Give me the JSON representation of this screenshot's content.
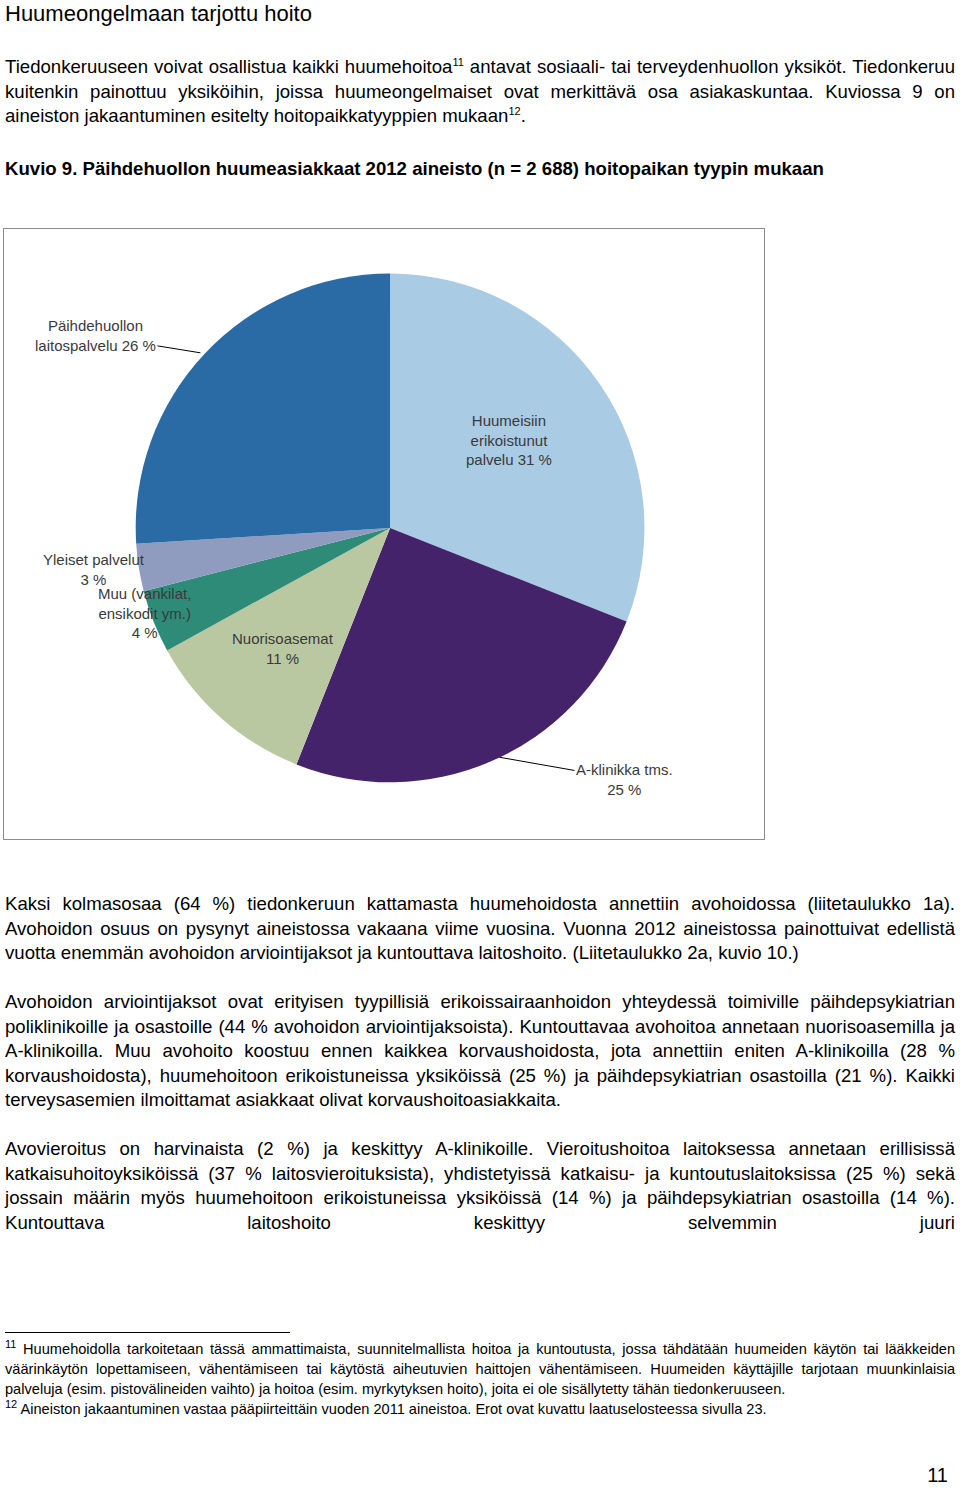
{
  "heading": "Huumeongelmaan tarjottu hoito",
  "intro": [
    "Tiedonkeruuseen voivat osallistua kaikki huumehoitoa",
    {
      "sup": "11"
    },
    " antavat sosiaali- tai terveydenhuollon yksiköt. Tiedonkeruu kuitenkin painottuu yksiköihin, joissa huumeongelmaiset ovat merkittävä osa asiakaskuntaa. Kuviossa 9 on aineiston jakaantuminen esitelty hoitopaikkatyyppien mukaan",
    {
      "sup": "12"
    },
    "."
  ],
  "figure_caption": {
    "label": "Kuvio 9.",
    "text": "Päihdehuollon huumeasiakkaat 2012 aineisto (n = 2 688) hoitopaikan tyypin mukaan"
  },
  "chart_data": {
    "type": "pie",
    "categories": [
      "Huumeisiin erikoistunut palvelu",
      "A-klinikka tms.",
      "Nuorisoasemat",
      "Muu (vankilat, ensikodit ym.)",
      "Yleiset palvelut",
      "Päihdehuollon laitospalvelu"
    ],
    "values": [
      31,
      25,
      11,
      4,
      3,
      26
    ],
    "value_labels": [
      "Huumeisiin\nerikoistunut\npalvelu 31 %",
      "A-klinikka tms.\n25 %",
      "Nuorisoasemat\n11 %",
      "Muu (vankilat,\nensikodit ym.)\n4 %",
      "Yleiset palvelut\n3 %",
      "Päihdehuollon\nlaitospalvelu 26 %"
    ],
    "colors": [
      "#a9cbe4",
      "#45236a",
      "#bac8a2",
      "#2e8b78",
      "#8f9cbf",
      "#2a6aa5"
    ],
    "data_labels": true
  },
  "paragraphs": [
    [
      "Kaksi kolmasosaa (64 %) tiedonkeruun kattamasta huumehoidosta annettiin avohoidossa (liitetaulukko 1a). Avohoidon osuus on pysynyt aineistossa vakaana viime vuosina. Vuonna 2012 aineistossa painottuivat edellistä vuotta enemmän avohoidon arviointijaksot ja kuntouttava laitoshoito. (Liitetaulukko 2a, kuvio 10.)"
    ],
    [
      "Avohoidon arviointijaksot ovat erityisen tyypillisiä erikoissairaanhoidon yhteydessä toimiville päihdepsykiatrian poliklinikoille ja osastoille (44 % avohoidon arviointijaksoista). Kuntouttavaa avohoitoa annetaan nuorisoasemilla ja A-klinikoilla. Muu avohoito koostuu ennen kaikkea korvaushoidosta, jota annettiin eniten A-klinikoilla (28 % korvaushoidosta), huumehoitoon erikoistuneissa yksiköissä (25 %) ja päihdepsykiatrian osastoilla (21 %). Kaikki terveysasemien ilmoittamat asiakkaat olivat korvaushoitoasiakkaita."
    ],
    [
      "Avovieroitus on harvinaista (2 %) ja keskittyy A-klinikoille. Vieroitushoitoa laitoksessa annetaan erillisissä katkaisuhoitoyksiköissä (37 % laitosvieroituksista), yhdistetyissä katkaisu- ja kuntoutuslaitoksissa (25 %) sekä jossain määrin myös huumehoitoon erikoistuneissa yksiköissä (14 %) ja päihdepsykiatrian osastoilla (14 %). Kuntouttava laitoshoito keskittyy selvemmin juuri"
    ]
  ],
  "footnotes": [
    {
      "mark": "11",
      "text": "Huumehoidolla tarkoitetaan tässä ammattimaista, suunnitelmallista hoitoa ja kuntoutusta, jossa tähdätään huumeiden käytön tai lääkkeiden väärinkäytön lopettamiseen, vähentämiseen tai käytöstä aiheutuvien haittojen vähentämiseen. Huumeiden käyttäjille tarjotaan muunkinlaisia palveluja (esim. pistovälineiden vaihto) ja hoitoa (esim. myrkytyksen hoito), joita ei ole sisällytetty tähän tiedonkeruuseen."
    },
    {
      "mark": "12",
      "text": "Aineiston jakaantuminen vastaa pääpiirteittäin vuoden 2011 aineistoa. Erot ovat kuvattu laatuselosteessa sivulla 23."
    }
  ],
  "page_number": "11"
}
